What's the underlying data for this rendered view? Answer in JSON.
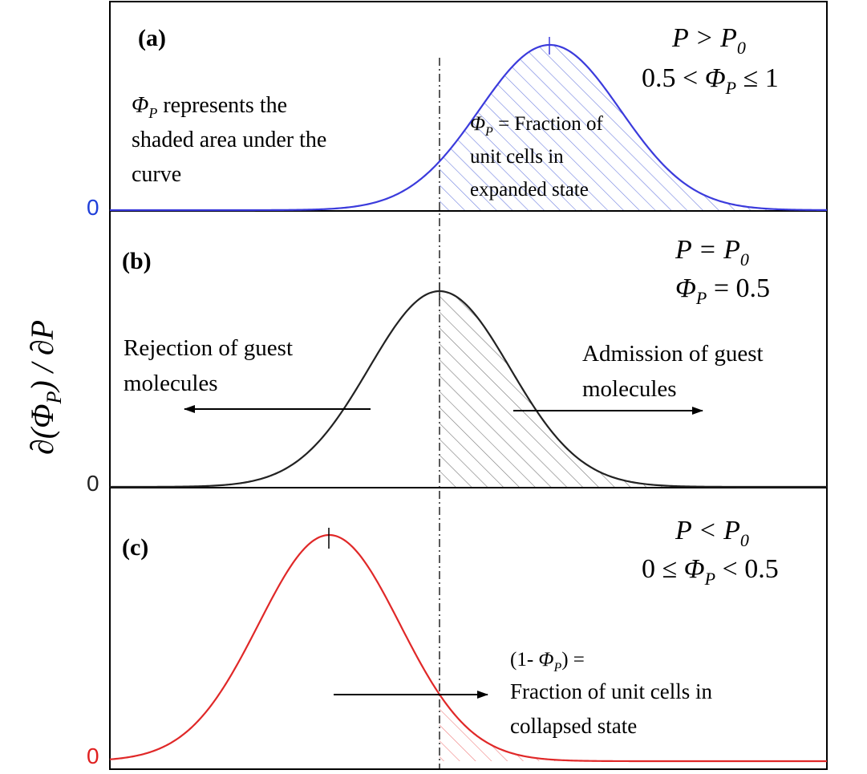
{
  "axis": {
    "ylabel_prefix": "∂(",
    "ylabel_phi": "Φ",
    "ylabel_sub": "P",
    "ylabel_suffix": ") / ∂P"
  },
  "panels": [
    {
      "id": "a",
      "label": "(a)",
      "zero_label": "0",
      "zero_color": "#1f3fd9",
      "curve_color": "#3b3bdc",
      "hatch_color": "#6f7fe0",
      "peak_position": 0.5,
      "condition_line1": "P > P",
      "condition_line1_sub": "0",
      "condition_line2_pre": "0.5 < ",
      "condition_line2_phi": "Φ",
      "condition_line2_sub": "P",
      "condition_line2_post": " ≤ 1",
      "note_phi": "Φ",
      "note_sub": "P",
      "note_line1": " represents the",
      "note_line2": "shaded area under the",
      "note_line3": "curve",
      "inside_phi": "Φ",
      "inside_sub": "P",
      "inside_line1": " = Fraction of",
      "inside_line2": "unit cells in",
      "inside_line3": "expanded state"
    },
    {
      "id": "b",
      "label": "(b)",
      "zero_label": "0",
      "zero_color": "#222222",
      "curve_color": "#222222",
      "hatch_color": "#777777",
      "peak_position": 0.0,
      "condition_line1": "P = P",
      "condition_line1_sub": "0",
      "condition_line2_phi": "Φ",
      "condition_line2_sub": "P",
      "condition_line2_post": " = 0.5",
      "left_text_line1": "Rejection of guest",
      "left_text_line2": "molecules",
      "right_text_line1": "Admission of guest",
      "right_text_line2": "molecules"
    },
    {
      "id": "c",
      "label": "(c)",
      "zero_label": "0",
      "zero_color": "#e02020",
      "curve_color": "#e02828",
      "hatch_color": "#f08080",
      "peak_position": -0.5,
      "condition_line1": "P < P",
      "condition_line1_sub": "0",
      "condition_line2_pre": "0 ≤ ",
      "condition_line2_phi": "Φ",
      "condition_line2_sub": "P",
      "condition_line2_post": " < 0.5",
      "note_line1_pre": "(1- ",
      "note_line1_phi": "Φ",
      "note_line1_sub": "P",
      "note_line1_post": ") =",
      "note_line2": "Fraction of unit cells in",
      "note_line3": "collapsed state"
    }
  ]
}
